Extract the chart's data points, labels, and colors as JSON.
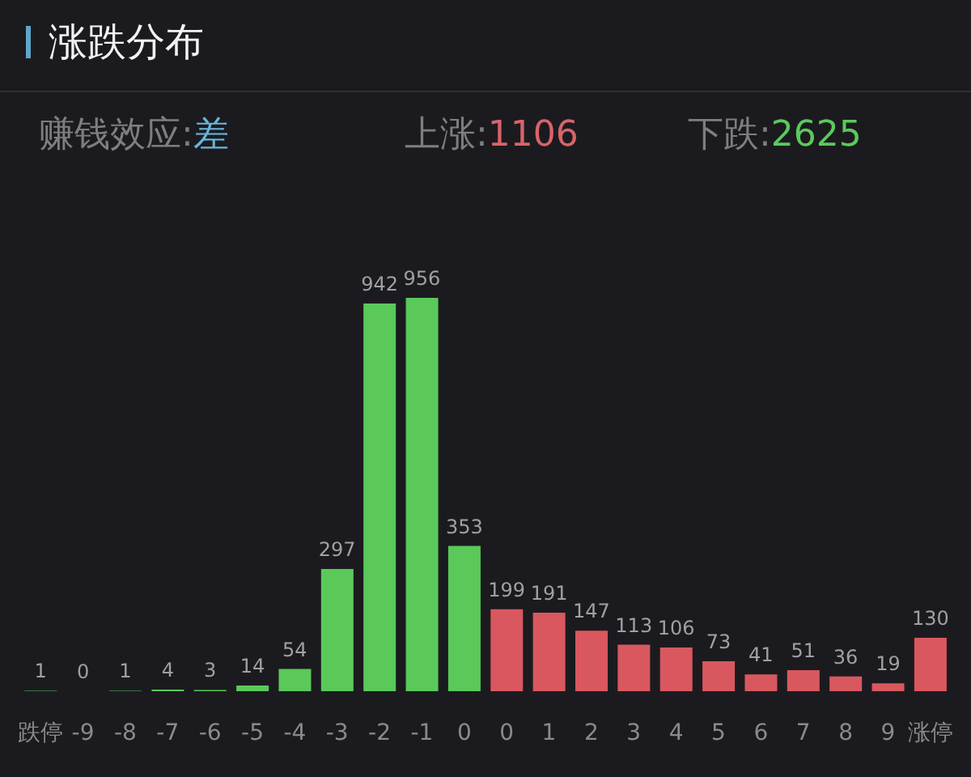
{
  "chart_data": {
    "type": "bar",
    "title": "涨跌分布",
    "annotations": [
      "赚钱效应:差",
      "上涨:1106",
      "下跌:2625"
    ],
    "categories": [
      "跌停",
      "-9",
      "-8",
      "-7",
      "-6",
      "-5",
      "-4",
      "-3",
      "-2",
      "-1",
      "0",
      "0",
      "1",
      "2",
      "3",
      "4",
      "5",
      "6",
      "7",
      "8",
      "9",
      "涨停"
    ],
    "values": [
      1,
      0,
      1,
      4,
      3,
      14,
      54,
      297,
      942,
      956,
      353,
      199,
      191,
      147,
      113,
      106,
      73,
      41,
      51,
      36,
      19,
      130
    ],
    "colors": [
      "#5ac95a",
      "#5ac95a",
      "#5ac95a",
      "#5ac95a",
      "#5ac95a",
      "#5ac95a",
      "#5ac95a",
      "#5ac95a",
      "#5ac95a",
      "#5ac95a",
      "#5ac95a",
      "#d9585f",
      "#d9585f",
      "#d9585f",
      "#d9585f",
      "#d9585f",
      "#d9585f",
      "#d9585f",
      "#d9585f",
      "#d9585f",
      "#d9585f",
      "#d9585f"
    ],
    "data_labels": true
  }
}
